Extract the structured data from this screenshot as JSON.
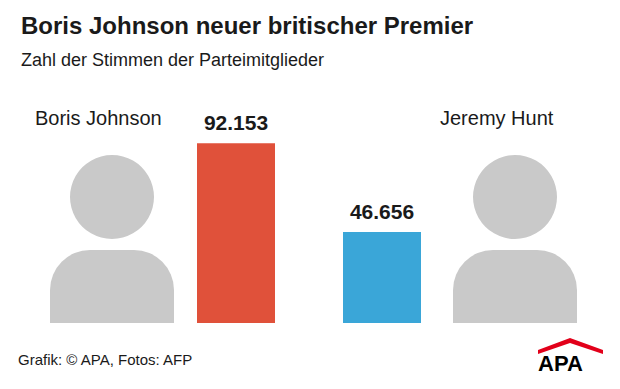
{
  "chart_data": {
    "type": "bar",
    "title": "Boris Johnson neuer britischer Premier",
    "subtitle": "Zahl der Stimmen der Parteimitglieder",
    "categories": [
      "Boris Johnson",
      "Jeremy Hunt"
    ],
    "values": [
      92153,
      46656
    ],
    "value_labels": [
      "92.153",
      "46.656"
    ],
    "colors": [
      "#e0513a",
      "#3aa6d8"
    ],
    "ylim": [
      0,
      100000
    ],
    "yticks": [
      0,
      100000
    ],
    "grid": false,
    "tick_labels": false,
    "data_labels": true,
    "source": "Grafik: © APA, Fotos: AFP",
    "logo": "APA"
  }
}
